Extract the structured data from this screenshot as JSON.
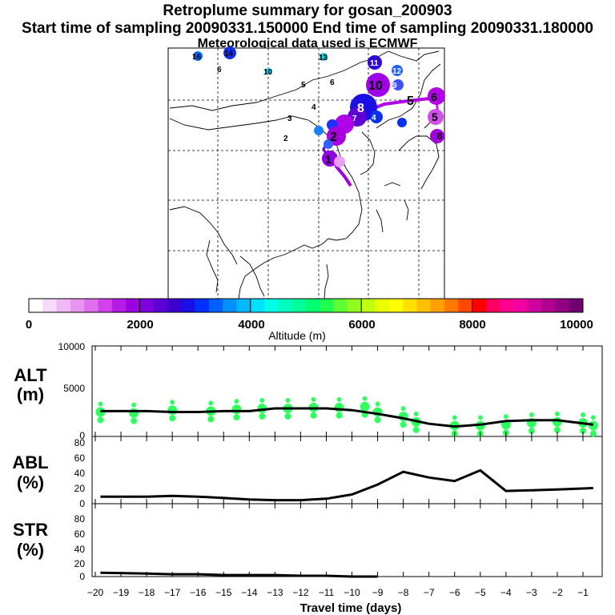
{
  "header": {
    "title": "Retroplume summary for gosan_200903",
    "sampling": "Start time of sampling 20090331.150000     End time of sampling 20090331.180000",
    "met": "Meteorological data used is ECMWF"
  },
  "map": {
    "day_labels": [
      "16",
      "14",
      "13",
      "11",
      "12",
      "10",
      "10",
      "9",
      "8",
      "7",
      "6",
      "6",
      "5",
      "5",
      "4",
      "4",
      "3",
      "2",
      "2",
      "1",
      "5",
      "6",
      "6"
    ]
  },
  "colorbar": {
    "ticks": [
      "0",
      "2000",
      "4000",
      "6000",
      "8000",
      "10000"
    ],
    "label": "Altitude (m)",
    "colors": [
      "#ffffff",
      "#f7d9fb",
      "#f0b8f7",
      "#e896f2",
      "#df6fee",
      "#d241ea",
      "#b61ce6",
      "#9a00e0",
      "#7e00dc",
      "#5c00d6",
      "#3b00d0",
      "#1a10e6",
      "#0030ff",
      "#0060ff",
      "#0090ff",
      "#00b8ff",
      "#00e0ff",
      "#00ffe8",
      "#00ffc0",
      "#00ff98",
      "#00ff70",
      "#20ff50",
      "#60ff30",
      "#90ff20",
      "#c0ff10",
      "#e8ff00",
      "#ffff00",
      "#ffe000",
      "#ffc000",
      "#ffa000",
      "#ff7800",
      "#ff4800",
      "#ff0000",
      "#ff0060",
      "#ff0090",
      "#f000a0",
      "#d000a0",
      "#b00090",
      "#900080",
      "#700070"
    ]
  },
  "panels": {
    "alt": {
      "label1": "ALT",
      "label2": "(m)",
      "ticks": [
        "10000",
        "5000",
        "0"
      ]
    },
    "abl": {
      "label1": "ABL",
      "label2": "(%)",
      "ticks": [
        "80",
        "60",
        "40",
        "20",
        "0"
      ]
    },
    "str": {
      "label1": "STR",
      "label2": "(%)",
      "ticks": [
        "80",
        "60",
        "40",
        "20",
        "0"
      ]
    }
  },
  "xaxis": {
    "label": "Travel time (days)",
    "ticks": [
      "−20",
      "−19",
      "−18",
      "−17",
      "−16",
      "−15",
      "−14",
      "−13",
      "−12",
      "−11",
      "−10",
      "−9",
      "−8",
      "−7",
      "−6",
      "−5",
      "−4",
      "−3",
      "−2",
      "−1"
    ]
  },
  "chart_data": [
    {
      "type": "line",
      "title": "ALT",
      "ylabel": "ALT (m)",
      "xlabel": "Travel time (days)",
      "ylim": [
        0,
        10000
      ],
      "x": [
        -19.8,
        -18,
        -17,
        -16,
        -15,
        -14,
        -13,
        -12,
        -11,
        -10,
        -9,
        -8,
        -7,
        -6,
        -5,
        -4,
        -3,
        -2,
        -0.6
      ],
      "series": [
        {
          "name": "mean altitude",
          "values": [
            2800,
            2800,
            2700,
            2700,
            2800,
            2800,
            3100,
            3100,
            3100,
            2900,
            2500,
            2000,
            1400,
            1100,
            1300,
            1700,
            1800,
            1800,
            1300
          ]
        }
      ],
      "clusters": {
        "x": [
          -19.8,
          -18.5,
          -17,
          -15.5,
          -14.5,
          -13.5,
          -12.5,
          -11.5,
          -10.5,
          -9.5,
          -9,
          -8,
          -7.5,
          -6,
          -5,
          -4,
          -3,
          -2,
          -1,
          -0.6
        ],
        "values": [
          2700,
          2600,
          2900,
          2800,
          3000,
          3100,
          3100,
          3200,
          3200,
          3300,
          2700,
          2200,
          1600,
          1200,
          1200,
          1300,
          1500,
          1600,
          1500,
          1200
        ]
      }
    },
    {
      "type": "line",
      "title": "ABL",
      "ylabel": "ABL (%)",
      "xlabel": "Travel time (days)",
      "ylim": [
        0,
        95
      ],
      "x": [
        -19.8,
        -18,
        -17,
        -16,
        -15,
        -14,
        -13,
        -12,
        -11,
        -10,
        -9,
        -8,
        -7,
        -6,
        -5,
        -4,
        -3,
        -2,
        -0.6
      ],
      "series": [
        {
          "name": "ABL fraction",
          "values": [
            10,
            10,
            11,
            10,
            8,
            6,
            5,
            5,
            7,
            13,
            27,
            45,
            37,
            32,
            47,
            18,
            19,
            20,
            22
          ]
        }
      ]
    },
    {
      "type": "line",
      "title": "STR",
      "ylabel": "STR (%)",
      "xlabel": "Travel time (days)",
      "ylim": [
        0,
        95
      ],
      "x": [
        -19.8,
        -18,
        -17,
        -16,
        -15,
        -14,
        -13,
        -12,
        -11,
        -10,
        -9
      ],
      "series": [
        {
          "name": "stratospheric fraction",
          "values": [
            5,
            4,
            3,
            3,
            2,
            2,
            2,
            1,
            1,
            0,
            0
          ]
        }
      ]
    }
  ]
}
